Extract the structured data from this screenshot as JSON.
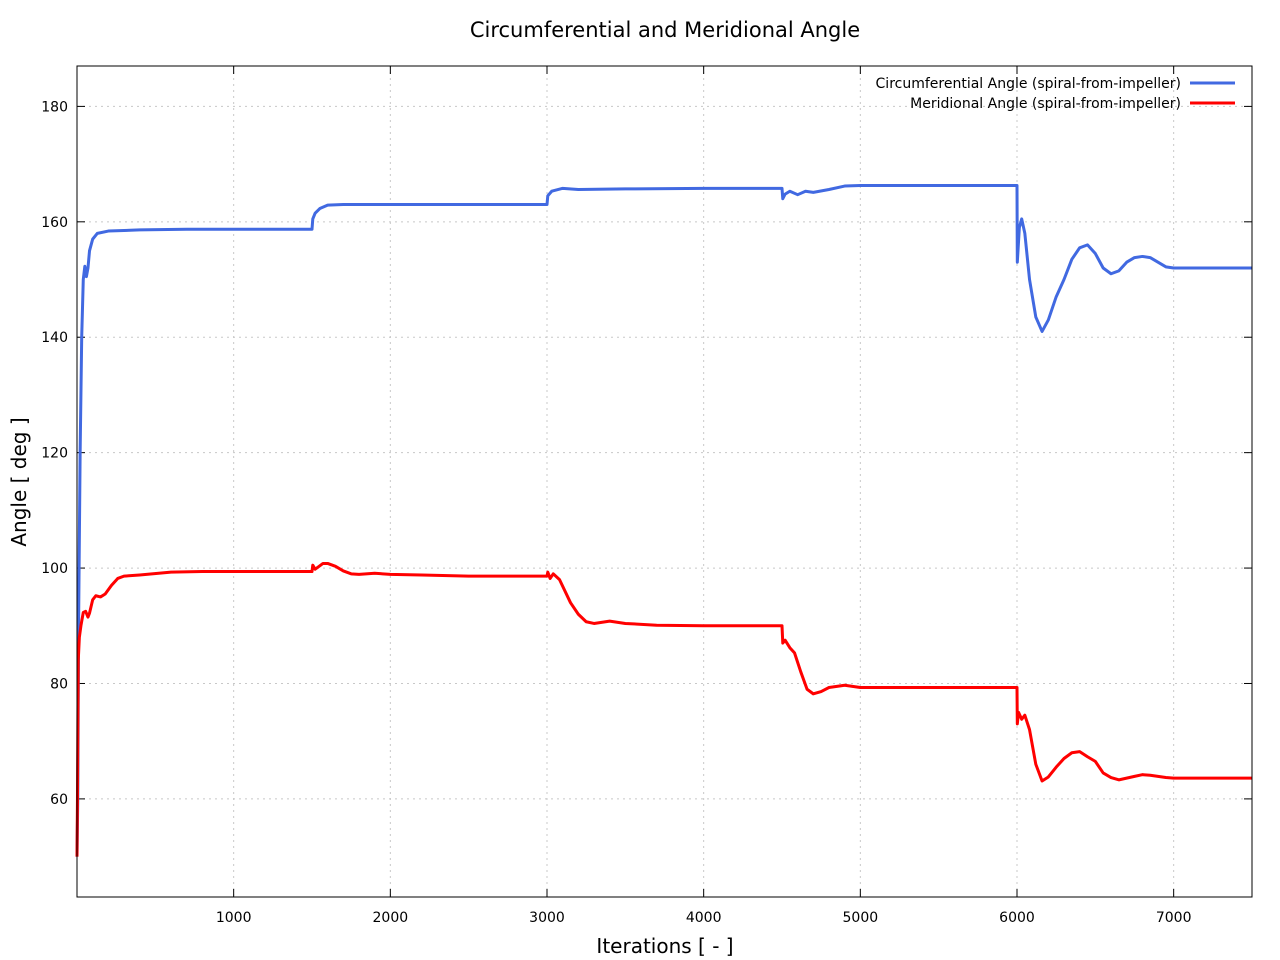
{
  "chart_data": {
    "type": "line",
    "title": "Circumferential and Meridional Angle",
    "xlabel": "Iterations [ - ]",
    "ylabel": "Angle [ deg ]",
    "xlim": [
      0,
      7500
    ],
    "ylim": [
      43,
      187
    ],
    "xticks": [
      1000,
      2000,
      3000,
      4000,
      5000,
      6000,
      7000
    ],
    "yticks": [
      60,
      80,
      100,
      120,
      140,
      160,
      180
    ],
    "grid": true,
    "legend_position": "top-right",
    "series": [
      {
        "name": "Circumferential Angle (spiral-from-impeller)",
        "color": "#4169e1",
        "points": [
          [
            0,
            50
          ],
          [
            5,
            60
          ],
          [
            10,
            90
          ],
          [
            20,
            120
          ],
          [
            30,
            140
          ],
          [
            40,
            150
          ],
          [
            50,
            152.3
          ],
          [
            60,
            150.5
          ],
          [
            70,
            152
          ],
          [
            80,
            155
          ],
          [
            100,
            157
          ],
          [
            130,
            158
          ],
          [
            200,
            158.4
          ],
          [
            400,
            158.6
          ],
          [
            700,
            158.7
          ],
          [
            1000,
            158.7
          ],
          [
            1500,
            158.7
          ],
          [
            1505,
            160.5
          ],
          [
            1520,
            161.5
          ],
          [
            1550,
            162.3
          ],
          [
            1600,
            162.9
          ],
          [
            1700,
            163
          ],
          [
            2000,
            163
          ],
          [
            2500,
            163
          ],
          [
            3000,
            163
          ],
          [
            3005,
            164.5
          ],
          [
            3030,
            165.3
          ],
          [
            3100,
            165.8
          ],
          [
            3200,
            165.6
          ],
          [
            3500,
            165.7
          ],
          [
            4000,
            165.8
          ],
          [
            4500,
            165.8
          ],
          [
            4505,
            164
          ],
          [
            4520,
            164.8
          ],
          [
            4550,
            165.3
          ],
          [
            4600,
            164.7
          ],
          [
            4650,
            165.3
          ],
          [
            4700,
            165.1
          ],
          [
            4800,
            165.6
          ],
          [
            4900,
            166.2
          ],
          [
            5000,
            166.3
          ],
          [
            5500,
            166.3
          ],
          [
            6000,
            166.3
          ],
          [
            6002,
            153
          ],
          [
            6015,
            159
          ],
          [
            6030,
            160.5
          ],
          [
            6050,
            158
          ],
          [
            6080,
            150
          ],
          [
            6120,
            143.5
          ],
          [
            6160,
            141
          ],
          [
            6200,
            143
          ],
          [
            6250,
            147
          ],
          [
            6300,
            150
          ],
          [
            6350,
            153.5
          ],
          [
            6400,
            155.5
          ],
          [
            6450,
            156
          ],
          [
            6500,
            154.5
          ],
          [
            6550,
            152
          ],
          [
            6600,
            151
          ],
          [
            6650,
            151.5
          ],
          [
            6700,
            153
          ],
          [
            6750,
            153.8
          ],
          [
            6800,
            154
          ],
          [
            6850,
            153.8
          ],
          [
            6900,
            153
          ],
          [
            6950,
            152.2
          ],
          [
            7000,
            152
          ],
          [
            7500,
            152
          ]
        ]
      },
      {
        "name": "Meridional Angle (spiral-from-impeller)",
        "color": "#ff0000",
        "points": [
          [
            0,
            50
          ],
          [
            3,
            60
          ],
          [
            8,
            84
          ],
          [
            15,
            88
          ],
          [
            25,
            90
          ],
          [
            40,
            92.3
          ],
          [
            55,
            92.5
          ],
          [
            70,
            91.5
          ],
          [
            80,
            92.2
          ],
          [
            100,
            94.5
          ],
          [
            120,
            95.2
          ],
          [
            150,
            95
          ],
          [
            180,
            95.5
          ],
          [
            220,
            97
          ],
          [
            260,
            98.2
          ],
          [
            300,
            98.6
          ],
          [
            400,
            98.8
          ],
          [
            600,
            99.3
          ],
          [
            800,
            99.4
          ],
          [
            1000,
            99.4
          ],
          [
            1500,
            99.4
          ],
          [
            1505,
            100.5
          ],
          [
            1520,
            99.8
          ],
          [
            1540,
            100.2
          ],
          [
            1570,
            100.8
          ],
          [
            1600,
            100.8
          ],
          [
            1650,
            100.3
          ],
          [
            1700,
            99.5
          ],
          [
            1750,
            99
          ],
          [
            1800,
            98.9
          ],
          [
            1900,
            99.1
          ],
          [
            2000,
            98.9
          ],
          [
            2200,
            98.8
          ],
          [
            2500,
            98.6
          ],
          [
            3000,
            98.6
          ],
          [
            3005,
            99.3
          ],
          [
            3020,
            98.2
          ],
          [
            3040,
            99
          ],
          [
            3080,
            98
          ],
          [
            3150,
            94
          ],
          [
            3200,
            92
          ],
          [
            3250,
            90.7
          ],
          [
            3300,
            90.4
          ],
          [
            3400,
            90.8
          ],
          [
            3500,
            90.4
          ],
          [
            3700,
            90.1
          ],
          [
            4000,
            90
          ],
          [
            4500,
            90
          ],
          [
            4505,
            87
          ],
          [
            4520,
            87.5
          ],
          [
            4550,
            86.2
          ],
          [
            4580,
            85.3
          ],
          [
            4620,
            82
          ],
          [
            4660,
            79
          ],
          [
            4700,
            78.2
          ],
          [
            4750,
            78.6
          ],
          [
            4800,
            79.3
          ],
          [
            4900,
            79.7
          ],
          [
            4950,
            79.5
          ],
          [
            5000,
            79.3
          ],
          [
            5500,
            79.3
          ],
          [
            6000,
            79.3
          ],
          [
            6002,
            73
          ],
          [
            6010,
            75
          ],
          [
            6030,
            73.8
          ],
          [
            6050,
            74.5
          ],
          [
            6080,
            72
          ],
          [
            6120,
            66
          ],
          [
            6160,
            63.1
          ],
          [
            6200,
            63.8
          ],
          [
            6250,
            65.5
          ],
          [
            6300,
            67
          ],
          [
            6350,
            68
          ],
          [
            6400,
            68.2
          ],
          [
            6450,
            67.3
          ],
          [
            6500,
            66.5
          ],
          [
            6550,
            64.5
          ],
          [
            6600,
            63.7
          ],
          [
            6650,
            63.3
          ],
          [
            6700,
            63.6
          ],
          [
            6750,
            63.9
          ],
          [
            6800,
            64.2
          ],
          [
            6850,
            64.1
          ],
          [
            6900,
            63.9
          ],
          [
            6950,
            63.7
          ],
          [
            7000,
            63.6
          ],
          [
            7500,
            63.6
          ]
        ]
      }
    ]
  }
}
